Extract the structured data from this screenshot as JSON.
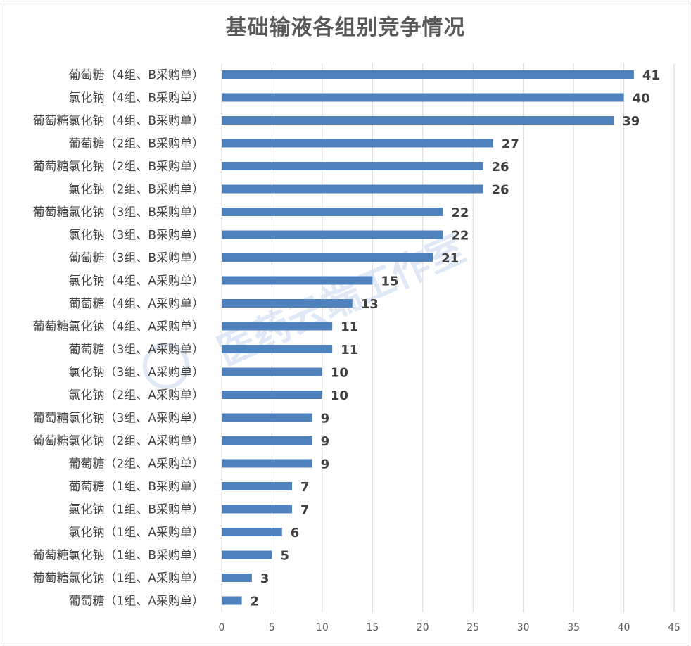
{
  "chart_data": {
    "type": "bar",
    "orientation": "horizontal",
    "title": "基础输液各组别竞争情况",
    "categories": [
      "葡萄糖（4组、B采购单）",
      "氯化钠（4组、B采购单）",
      "葡萄糖氯化钠（4组、B采购单）",
      "葡萄糖（2组、B采购单）",
      "葡萄糖氯化钠（2组、B采购单）",
      "氯化钠（2组、B采购单）",
      "葡萄糖氯化钠（3组、B采购单）",
      "氯化钠（3组、B采购单）",
      "葡萄糖（3组、B采购单）",
      "氯化钠（4组、A采购单）",
      "葡萄糖（4组、A采购单）",
      "葡萄糖氯化钠（4组、A采购单）",
      "葡萄糖（3组、A采购单）",
      "氯化钠（3组、A采购单）",
      "氯化钠（2组、A采购单）",
      "葡萄糖氯化钠（3组、A采购单）",
      "葡萄糖氯化钠（2组、A采购单）",
      "葡萄糖（2组、A采购单）",
      "葡萄糖（1组、B采购单）",
      "氯化钠（1组、B采购单）",
      "氯化钠（1组、A采购单）",
      "葡萄糖氯化钠（1组、B采购单）",
      "葡萄糖氯化钠（1组、A采购单）",
      "葡萄糖（1组、A采购单）"
    ],
    "values": [
      41,
      40,
      39,
      27,
      26,
      26,
      22,
      22,
      21,
      15,
      13,
      11,
      11,
      10,
      10,
      9,
      9,
      9,
      7,
      7,
      6,
      5,
      3,
      2
    ],
    "xlim": [
      0,
      45
    ],
    "xticks": [
      0,
      5,
      10,
      15,
      20,
      25,
      30,
      35,
      40,
      45
    ],
    "grid": true,
    "bar_color": "#4f81bd",
    "xlabel": "",
    "ylabel": "",
    "watermark": "医药云端工作室"
  }
}
